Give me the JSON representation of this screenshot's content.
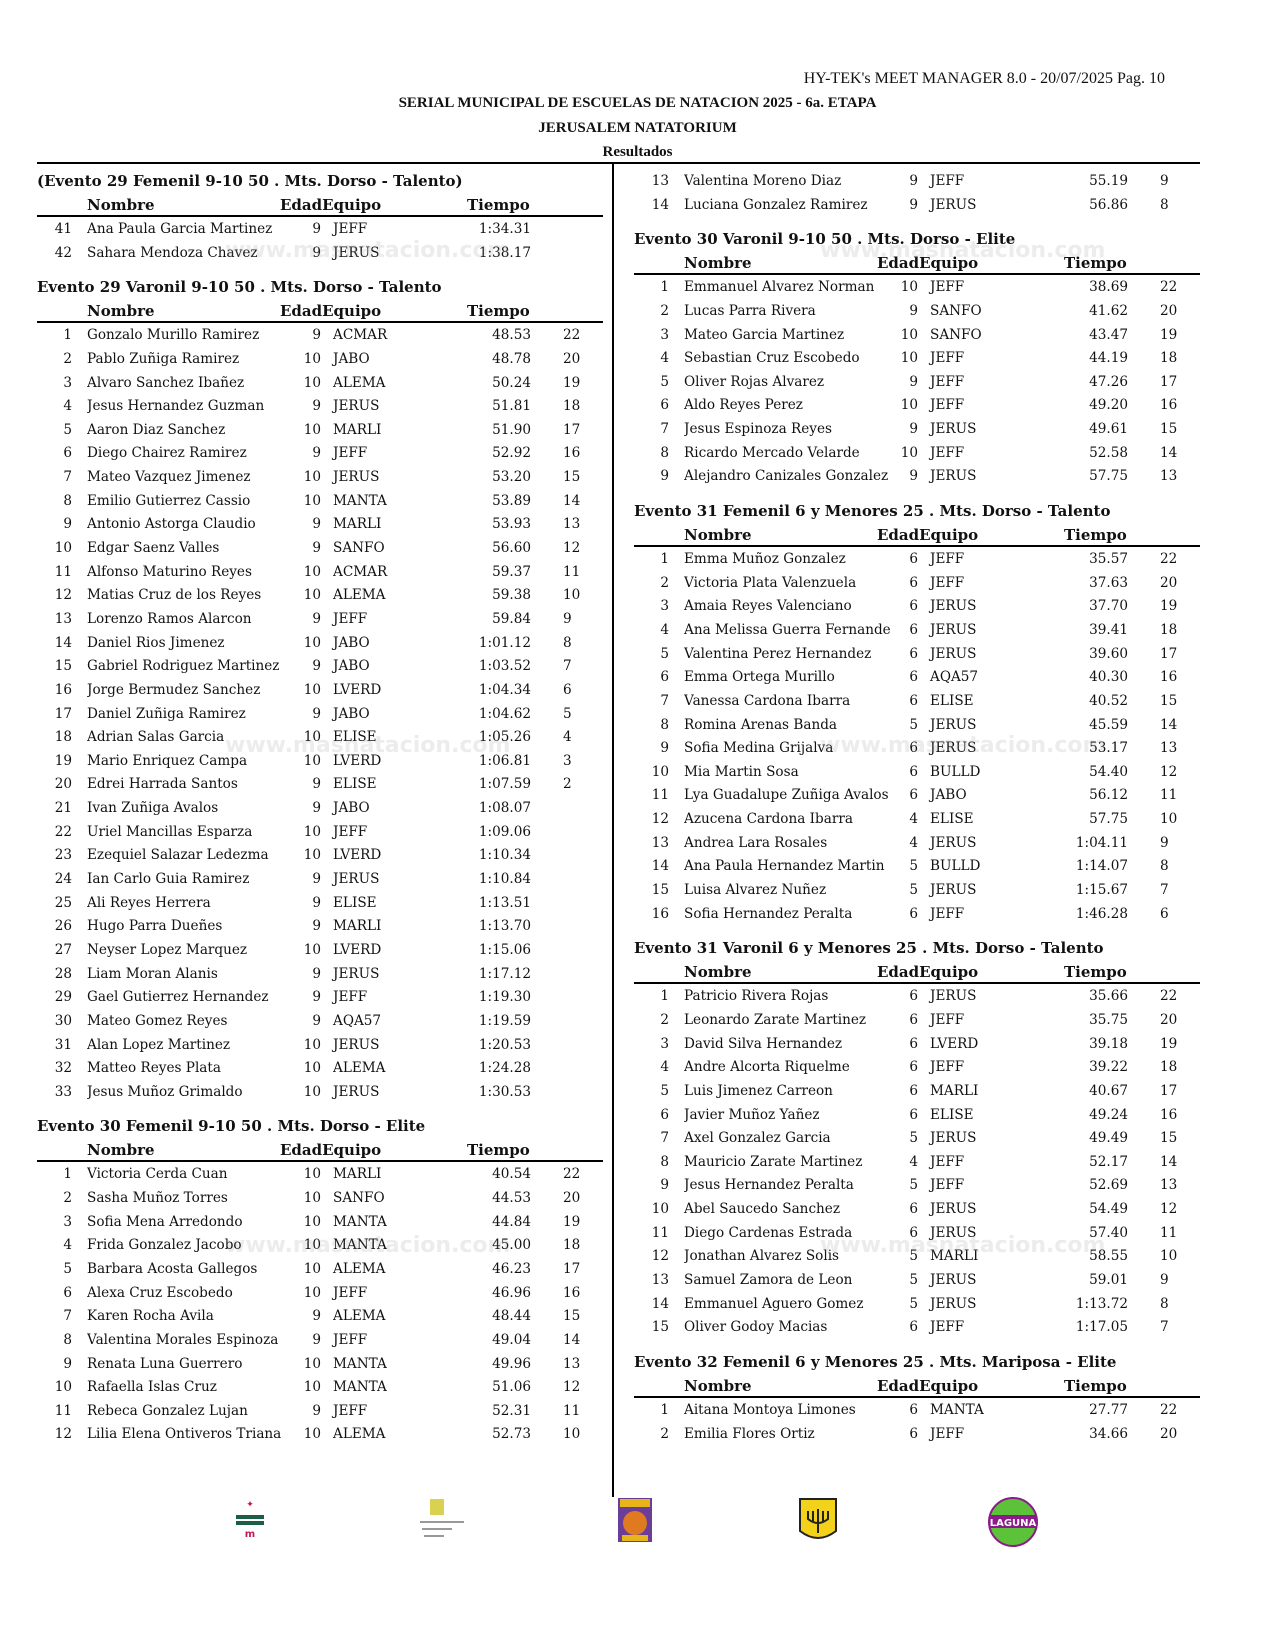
{
  "header": {
    "meta": "HY-TEK's MEET MANAGER 8.0 - 20/07/2025  Pag. 10",
    "title": "SERIAL MUNICIPAL DE ESCUELAS DE NATACION 2025 - 6a. ETAPA",
    "venue": "JERUSALEM NATATORIUM",
    "subtitle": "Resultados"
  },
  "columns_header": {
    "nombre": "Nombre",
    "edad_equipo": "EdadEquipo",
    "tiempo": "Tiempo"
  },
  "watermark": "www.masnatacion.com",
  "logos": [
    "siempre-puede-logo",
    "instituto-municipal-deporte-torreon-logo",
    "tigres-logo",
    "jerusalem-logo",
    "laguna-logo"
  ],
  "left": [
    {
      "title": "(Evento 29  Femenil 9-10 50 . Mts. Dorso - Talento)",
      "rows": [
        [
          "41",
          "Ana Paula Garcia Martinez",
          "9",
          "JEFF",
          "1:34.31",
          ""
        ],
        [
          "42",
          "Sahara Mendoza Chavez",
          "9",
          "JERUS",
          "1:38.17",
          ""
        ]
      ]
    },
    {
      "title": "Evento 29  Varonil 9-10 50 . Mts. Dorso - Talento",
      "rows": [
        [
          "1",
          "Gonzalo Murillo Ramirez",
          "9",
          "ACMAR",
          "48.53",
          "22"
        ],
        [
          "2",
          "Pablo Zuñiga Ramirez",
          "10",
          "JABO",
          "48.78",
          "20"
        ],
        [
          "3",
          "Alvaro Sanchez Ibañez",
          "10",
          "ALEMA",
          "50.24",
          "19"
        ],
        [
          "4",
          "Jesus Hernandez Guzman",
          "9",
          "JERUS",
          "51.81",
          "18"
        ],
        [
          "5",
          "Aaron Diaz Sanchez",
          "10",
          "MARLI",
          "51.90",
          "17"
        ],
        [
          "6",
          "Diego Chairez Ramirez",
          "9",
          "JEFF",
          "52.92",
          "16"
        ],
        [
          "7",
          "Mateo Vazquez Jimenez",
          "10",
          "JERUS",
          "53.20",
          "15"
        ],
        [
          "8",
          "Emilio Gutierrez Cassio",
          "10",
          "MANTA",
          "53.89",
          "14"
        ],
        [
          "9",
          "Antonio Astorga Claudio",
          "9",
          "MARLI",
          "53.93",
          "13"
        ],
        [
          "10",
          "Edgar Saenz Valles",
          "9",
          "SANFO",
          "56.60",
          "12"
        ],
        [
          "11",
          "Alfonso Maturino Reyes",
          "10",
          "ACMAR",
          "59.37",
          "11"
        ],
        [
          "12",
          "Matias Cruz de los Reyes",
          "10",
          "ALEMA",
          "59.38",
          "10"
        ],
        [
          "13",
          "Lorenzo Ramos Alarcon",
          "9",
          "JEFF",
          "59.84",
          "9"
        ],
        [
          "14",
          "Daniel Rios Jimenez",
          "10",
          "JABO",
          "1:01.12",
          "8"
        ],
        [
          "15",
          "Gabriel Rodriguez Martinez",
          "9",
          "JABO",
          "1:03.52",
          "7"
        ],
        [
          "16",
          "Jorge Bermudez Sanchez",
          "10",
          "LVERD",
          "1:04.34",
          "6"
        ],
        [
          "17",
          "Daniel Zuñiga Ramirez",
          "9",
          "JABO",
          "1:04.62",
          "5"
        ],
        [
          "18",
          "Adrian Salas Garcia",
          "10",
          "ELISE",
          "1:05.26",
          "4"
        ],
        [
          "19",
          "Mario Enriquez Campa",
          "10",
          "LVERD",
          "1:06.81",
          "3"
        ],
        [
          "20",
          "Edrei Harrada Santos",
          "9",
          "ELISE",
          "1:07.59",
          "2"
        ],
        [
          "21",
          "Ivan Zuñiga Avalos",
          "9",
          "JABO",
          "1:08.07",
          ""
        ],
        [
          "22",
          "Uriel Mancillas Esparza",
          "10",
          "JEFF",
          "1:09.06",
          ""
        ],
        [
          "23",
          "Ezequiel Salazar Ledezma",
          "10",
          "LVERD",
          "1:10.34",
          ""
        ],
        [
          "24",
          "Ian Carlo Guia Ramirez",
          "9",
          "JERUS",
          "1:10.84",
          ""
        ],
        [
          "25",
          "Ali Reyes Herrera",
          "9",
          "ELISE",
          "1:13.51",
          ""
        ],
        [
          "26",
          "Hugo Parra Dueñes",
          "9",
          "MARLI",
          "1:13.70",
          ""
        ],
        [
          "27",
          "Neyser Lopez Marquez",
          "10",
          "LVERD",
          "1:15.06",
          ""
        ],
        [
          "28",
          "Liam Moran Alanis",
          "9",
          "JERUS",
          "1:17.12",
          ""
        ],
        [
          "29",
          "Gael Gutierrez Hernandez",
          "9",
          "JEFF",
          "1:19.30",
          ""
        ],
        [
          "30",
          "Mateo Gomez Reyes",
          "9",
          "AQA57",
          "1:19.59",
          ""
        ],
        [
          "31",
          "Alan Lopez Martinez",
          "10",
          "JERUS",
          "1:20.53",
          ""
        ],
        [
          "32",
          "Matteo Reyes Plata",
          "10",
          "ALEMA",
          "1:24.28",
          ""
        ],
        [
          "33",
          "Jesus Muñoz Grimaldo",
          "10",
          "JERUS",
          "1:30.53",
          ""
        ]
      ]
    },
    {
      "title": "Evento 30  Femenil 9-10 50 . Mts. Dorso - Elite",
      "rows": [
        [
          "1",
          "Victoria Cerda Cuan",
          "10",
          "MARLI",
          "40.54",
          "22"
        ],
        [
          "2",
          "Sasha Muñoz Torres",
          "10",
          "SANFO",
          "44.53",
          "20"
        ],
        [
          "3",
          "Sofia Mena Arredondo",
          "10",
          "MANTA",
          "44.84",
          "19"
        ],
        [
          "4",
          "Frida Gonzalez Jacobo",
          "10",
          "MANTA",
          "45.00",
          "18"
        ],
        [
          "5",
          "Barbara Acosta Gallegos",
          "10",
          "ALEMA",
          "46.23",
          "17"
        ],
        [
          "6",
          "Alexa Cruz Escobedo",
          "10",
          "JEFF",
          "46.96",
          "16"
        ],
        [
          "7",
          "Karen Rocha Avila",
          "9",
          "ALEMA",
          "48.44",
          "15"
        ],
        [
          "8",
          "Valentina Morales Espinoza",
          "9",
          "JEFF",
          "49.04",
          "14"
        ],
        [
          "9",
          "Renata Luna Guerrero",
          "10",
          "MANTA",
          "49.96",
          "13"
        ],
        [
          "10",
          "Rafaella Islas Cruz",
          "10",
          "MANTA",
          "51.06",
          "12"
        ],
        [
          "11",
          "Rebeca Gonzalez Lujan",
          "9",
          "JEFF",
          "52.31",
          "11"
        ],
        [
          "12",
          "Lilia Elena Ontiveros Triana",
          "10",
          "ALEMA",
          "52.73",
          "10"
        ]
      ]
    }
  ],
  "right": [
    {
      "title": "",
      "rows": [
        [
          "13",
          "Valentina Moreno Diaz",
          "9",
          "JEFF",
          "55.19",
          "9"
        ],
        [
          "14",
          "Luciana Gonzalez Ramirez",
          "9",
          "JERUS",
          "56.86",
          "8"
        ]
      ]
    },
    {
      "title": "Evento 30  Varonil 9-10 50 . Mts. Dorso - Elite",
      "rows": [
        [
          "1",
          "Emmanuel Alvarez Norman",
          "10",
          "JEFF",
          "38.69",
          "22"
        ],
        [
          "2",
          "Lucas Parra Rivera",
          "9",
          "SANFO",
          "41.62",
          "20"
        ],
        [
          "3",
          "Mateo Garcia Martinez",
          "10",
          "SANFO",
          "43.47",
          "19"
        ],
        [
          "4",
          "Sebastian Cruz Escobedo",
          "10",
          "JEFF",
          "44.19",
          "18"
        ],
        [
          "5",
          "Oliver Rojas Alvarez",
          "9",
          "JEFF",
          "47.26",
          "17"
        ],
        [
          "6",
          "Aldo Reyes Perez",
          "10",
          "JEFF",
          "49.20",
          "16"
        ],
        [
          "7",
          "Jesus Espinoza Reyes",
          "9",
          "JERUS",
          "49.61",
          "15"
        ],
        [
          "8",
          "Ricardo Mercado Velarde",
          "10",
          "JEFF",
          "52.58",
          "14"
        ],
        [
          "9",
          "Alejandro Canizales Gonzalez",
          "9",
          "JERUS",
          "57.75",
          "13"
        ]
      ]
    },
    {
      "title": "Evento 31  Femenil 6 y Menores 25 . Mts. Dorso - Talento",
      "rows": [
        [
          "1",
          "Emma Muñoz Gonzalez",
          "6",
          "JEFF",
          "35.57",
          "22"
        ],
        [
          "2",
          "Victoria Plata Valenzuela",
          "6",
          "JEFF",
          "37.63",
          "20"
        ],
        [
          "3",
          "Amaia Reyes Valenciano",
          "6",
          "JERUS",
          "37.70",
          "19"
        ],
        [
          "4",
          "Ana Melissa Guerra Fernande",
          "6",
          "JERUS",
          "39.41",
          "18"
        ],
        [
          "5",
          "Valentina Perez Hernandez",
          "6",
          "JERUS",
          "39.60",
          "17"
        ],
        [
          "6",
          "Emma Ortega Murillo",
          "6",
          "AQA57",
          "40.30",
          "16"
        ],
        [
          "7",
          "Vanessa Cardona Ibarra",
          "6",
          "ELISE",
          "40.52",
          "15"
        ],
        [
          "8",
          "Romina Arenas Banda",
          "5",
          "JERUS",
          "45.59",
          "14"
        ],
        [
          "9",
          "Sofia Medina Grijalva",
          "6",
          "JERUS",
          "53.17",
          "13"
        ],
        [
          "10",
          "Mia Martin Sosa",
          "6",
          "BULLD",
          "54.40",
          "12"
        ],
        [
          "11",
          "Lya Guadalupe Zuñiga Avalos",
          "6",
          "JABO",
          "56.12",
          "11"
        ],
        [
          "12",
          "Azucena Cardona Ibarra",
          "4",
          "ELISE",
          "57.75",
          "10"
        ],
        [
          "13",
          "Andrea Lara Rosales",
          "4",
          "JERUS",
          "1:04.11",
          "9"
        ],
        [
          "14",
          "Ana Paula Hernandez Martin",
          "5",
          "BULLD",
          "1:14.07",
          "8"
        ],
        [
          "15",
          "Luisa Alvarez Nuñez",
          "5",
          "JERUS",
          "1:15.67",
          "7"
        ],
        [
          "16",
          "Sofia Hernandez Peralta",
          "6",
          "JEFF",
          "1:46.28",
          "6"
        ]
      ]
    },
    {
      "title": "Evento 31  Varonil 6 y Menores 25 . Mts. Dorso - Talento",
      "rows": [
        [
          "1",
          "Patricio Rivera Rojas",
          "6",
          "JERUS",
          "35.66",
          "22"
        ],
        [
          "2",
          "Leonardo Zarate Martinez",
          "6",
          "JEFF",
          "35.75",
          "20"
        ],
        [
          "3",
          "David Silva Hernandez",
          "6",
          "LVERD",
          "39.18",
          "19"
        ],
        [
          "4",
          "Andre Alcorta Riquelme",
          "6",
          "JEFF",
          "39.22",
          "18"
        ],
        [
          "5",
          "Luis Jimenez Carreon",
          "6",
          "MARLI",
          "40.67",
          "17"
        ],
        [
          "6",
          "Javier Muñoz Yañez",
          "6",
          "ELISE",
          "49.24",
          "16"
        ],
        [
          "7",
          "Axel Gonzalez Garcia",
          "5",
          "JERUS",
          "49.49",
          "15"
        ],
        [
          "8",
          "Mauricio Zarate Martinez",
          "4",
          "JEFF",
          "52.17",
          "14"
        ],
        [
          "9",
          "Jesus Hernandez Peralta",
          "5",
          "JEFF",
          "52.69",
          "13"
        ],
        [
          "10",
          "Abel Saucedo Sanchez",
          "6",
          "JERUS",
          "54.49",
          "12"
        ],
        [
          "11",
          "Diego Cardenas Estrada",
          "6",
          "JERUS",
          "57.40",
          "11"
        ],
        [
          "12",
          "Jonathan Alvarez Solis",
          "5",
          "MARLI",
          "58.55",
          "10"
        ],
        [
          "13",
          "Samuel Zamora de Leon",
          "5",
          "JERUS",
          "59.01",
          "9"
        ],
        [
          "14",
          "Emmanuel Aguero Gomez",
          "5",
          "JERUS",
          "1:13.72",
          "8"
        ],
        [
          "15",
          "Oliver Godoy Macias",
          "6",
          "JEFF",
          "1:17.05",
          "7"
        ]
      ]
    },
    {
      "title": "Evento 32  Femenil 6 y Menores 25 . Mts. Mariposa - Elite",
      "rows": [
        [
          "1",
          "Aitana Montoya Limones",
          "6",
          "MANTA",
          "27.77",
          "22"
        ],
        [
          "2",
          "Emilia Flores Ortiz",
          "6",
          "JEFF",
          "34.66",
          "20"
        ]
      ]
    }
  ]
}
